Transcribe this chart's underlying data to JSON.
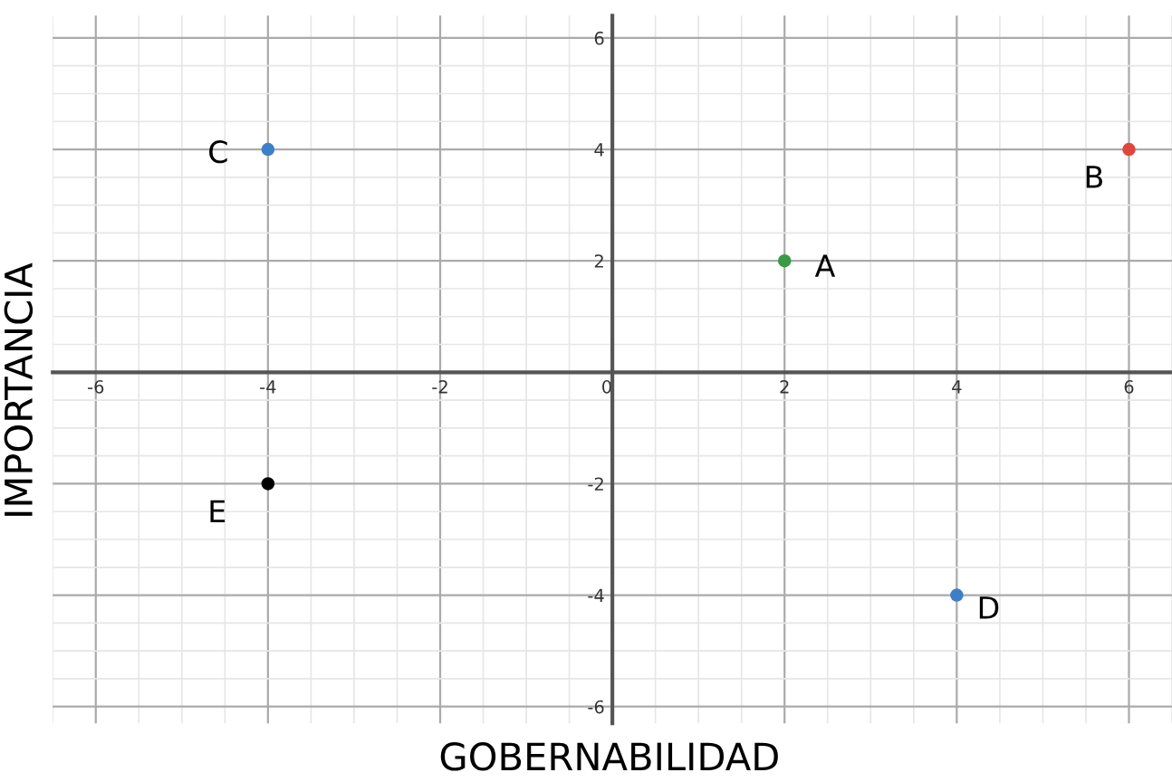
{
  "chart_data": {
    "type": "scatter",
    "xlabel": "GOBERNABILIDAD",
    "ylabel": "IMPORTANCIA",
    "x": [
      2,
      6,
      -4,
      4,
      -4
    ],
    "series": [
      {
        "values": [
          2,
          4,
          4,
          -4,
          -2
        ],
        "colors": [
          "#3a9a46",
          "#e0463c",
          "#3d7fc8",
          "#3d7fc8",
          "#000000"
        ]
      }
    ],
    "annotations": [
      {
        "text": "A",
        "x": 2,
        "y": 2
      },
      {
        "text": "B",
        "x": 6,
        "y": 4
      },
      {
        "text": "C",
        "x": -4,
        "y": 4
      },
      {
        "text": "D",
        "x": 4,
        "y": -4
      },
      {
        "text": "E",
        "x": -4,
        "y": -2
      }
    ],
    "xlim": [
      -6.5,
      6.5
    ],
    "ylim": [
      -6.3,
      6.4
    ],
    "xticks": [
      -6,
      -4,
      -2,
      0,
      2,
      4,
      6
    ],
    "yticks": [
      -6,
      -4,
      -2,
      2,
      4,
      6
    ],
    "grid": true,
    "marker": "circle"
  }
}
